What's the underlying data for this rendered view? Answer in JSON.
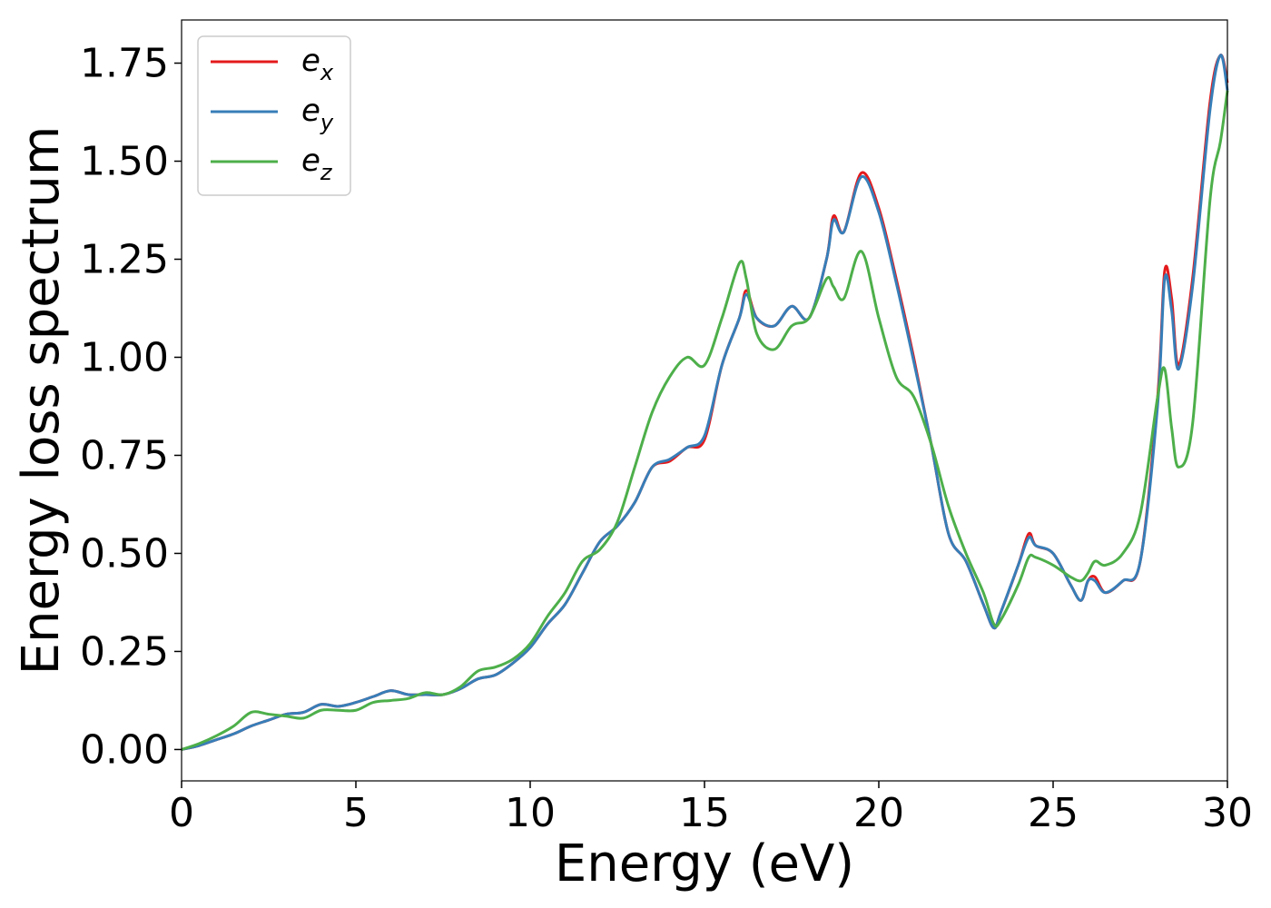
{
  "chart_data": {
    "type": "line",
    "title": "",
    "xlabel": "Energy (eV)",
    "ylabel": "Energy loss spectrum",
    "xlim": [
      0,
      30
    ],
    "ylim": [
      -0.08,
      1.86
    ],
    "xticks": [
      0,
      5,
      10,
      15,
      20,
      25,
      30
    ],
    "xtick_labels": [
      "0",
      "5",
      "10",
      "15",
      "20",
      "25",
      "30"
    ],
    "yticks": [
      0.0,
      0.25,
      0.5,
      0.75,
      1.0,
      1.25,
      1.5,
      1.75
    ],
    "ytick_labels": [
      "0.00",
      "0.25",
      "0.50",
      "0.75",
      "1.00",
      "1.25",
      "1.50",
      "1.75"
    ],
    "grid": false,
    "legend_position": "top-left",
    "x": [
      0,
      0.5,
      1,
      1.5,
      2,
      2.5,
      3,
      3.5,
      4,
      4.5,
      5,
      5.5,
      6,
      6.5,
      7,
      7.5,
      8,
      8.5,
      9,
      9.5,
      10,
      10.5,
      11,
      11.5,
      12,
      12.5,
      13,
      13.5,
      14,
      14.5,
      15,
      15.5,
      16,
      16.2,
      16.5,
      17,
      17.5,
      18,
      18.5,
      18.7,
      19,
      19.5,
      20,
      20.5,
      21,
      21.5,
      22,
      22.5,
      23,
      23.3,
      23.5,
      24,
      24.3,
      24.5,
      25,
      25.5,
      25.8,
      26,
      26.2,
      26.5,
      27,
      27.5,
      28,
      28.2,
      28.4,
      28.6,
      29,
      29.5,
      29.8,
      30
    ],
    "series": [
      {
        "name": "e",
        "subscript": "x",
        "color": "#e41a1c",
        "values": [
          0.0,
          0.01,
          0.025,
          0.04,
          0.06,
          0.075,
          0.09,
          0.095,
          0.115,
          0.11,
          0.12,
          0.135,
          0.15,
          0.14,
          0.14,
          0.14,
          0.155,
          0.18,
          0.19,
          0.22,
          0.26,
          0.32,
          0.37,
          0.45,
          0.53,
          0.57,
          0.63,
          0.72,
          0.735,
          0.77,
          0.79,
          0.98,
          1.1,
          1.17,
          1.1,
          1.08,
          1.13,
          1.1,
          1.25,
          1.36,
          1.32,
          1.47,
          1.38,
          1.2,
          1.0,
          0.78,
          0.55,
          0.48,
          0.37,
          0.31,
          0.35,
          0.47,
          0.55,
          0.52,
          0.5,
          0.42,
          0.38,
          0.43,
          0.44,
          0.4,
          0.43,
          0.48,
          0.9,
          1.22,
          1.15,
          0.98,
          1.2,
          1.65,
          1.77,
          1.7
        ]
      },
      {
        "name": "e",
        "subscript": "y",
        "color": "#377eb8",
        "values": [
          0.0,
          0.01,
          0.025,
          0.04,
          0.06,
          0.075,
          0.09,
          0.095,
          0.115,
          0.11,
          0.12,
          0.135,
          0.15,
          0.14,
          0.14,
          0.14,
          0.155,
          0.18,
          0.19,
          0.22,
          0.26,
          0.32,
          0.37,
          0.45,
          0.53,
          0.57,
          0.63,
          0.72,
          0.74,
          0.77,
          0.8,
          0.98,
          1.1,
          1.16,
          1.1,
          1.08,
          1.13,
          1.1,
          1.25,
          1.35,
          1.32,
          1.46,
          1.37,
          1.19,
          0.99,
          0.78,
          0.55,
          0.48,
          0.37,
          0.31,
          0.35,
          0.47,
          0.54,
          0.52,
          0.5,
          0.42,
          0.38,
          0.43,
          0.43,
          0.4,
          0.43,
          0.48,
          0.88,
          1.2,
          1.12,
          0.97,
          1.18,
          1.63,
          1.77,
          1.68
        ]
      },
      {
        "name": "e",
        "subscript": "z",
        "color": "#4daf4a",
        "values": [
          0.0,
          0.015,
          0.035,
          0.06,
          0.095,
          0.09,
          0.085,
          0.08,
          0.1,
          0.1,
          0.1,
          0.12,
          0.125,
          0.13,
          0.145,
          0.14,
          0.16,
          0.2,
          0.21,
          0.23,
          0.27,
          0.34,
          0.4,
          0.48,
          0.51,
          0.58,
          0.72,
          0.86,
          0.95,
          1.0,
          0.98,
          1.1,
          1.24,
          1.2,
          1.06,
          1.02,
          1.08,
          1.1,
          1.2,
          1.18,
          1.15,
          1.27,
          1.1,
          0.95,
          0.9,
          0.78,
          0.62,
          0.5,
          0.4,
          0.32,
          0.33,
          0.42,
          0.49,
          0.49,
          0.47,
          0.44,
          0.43,
          0.45,
          0.48,
          0.47,
          0.5,
          0.6,
          0.9,
          0.97,
          0.82,
          0.72,
          0.83,
          1.4,
          1.55,
          1.68
        ]
      }
    ]
  }
}
